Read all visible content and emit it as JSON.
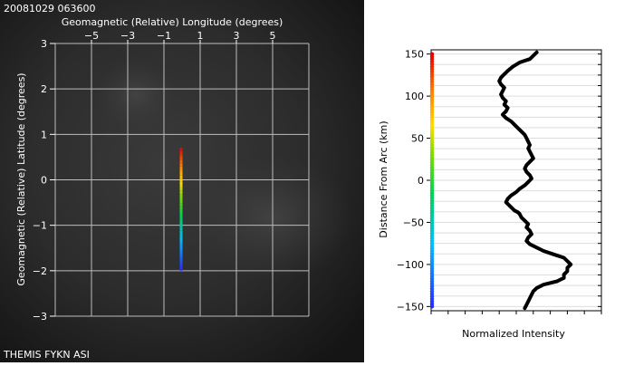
{
  "timestamp": "20081029 063600",
  "footer_label": "THEMIS FYKN ASI",
  "chart_data": [
    {
      "type": "scatter",
      "title": "",
      "xlabel": "Geomagnetic (Relative) Longitude (degrees)",
      "ylabel": "Geomagnetic (Relative) Latitude (degrees)",
      "xlim": [
        -7,
        7
      ],
      "ylim": [
        -3,
        3
      ],
      "x_tick_labels": [
        "−5",
        "−3",
        "−1",
        "1",
        "3",
        "5"
      ],
      "x_ticks": [
        -5,
        -3,
        -1,
        1,
        3,
        5
      ],
      "y_tick_labels": [
        "3",
        "2",
        "1",
        "0",
        "−1",
        "−2",
        "−3"
      ],
      "y_ticks": [
        3,
        2,
        1,
        0,
        -1,
        -2,
        -3
      ],
      "grid": true,
      "series": [
        {
          "x": -0.05,
          "y_start": -2.0,
          "y_end": 0.7,
          "color_scale": "distance from arc, blue (low) to red (high)"
        }
      ]
    },
    {
      "type": "line",
      "xlabel": "Normalized Intensity",
      "ylabel": "Distance From Arc (km)",
      "ylim": [
        -155,
        155
      ],
      "y_ticks": [
        150,
        100,
        50,
        0,
        -50,
        -100,
        -150
      ],
      "y_tick_labels": [
        "150",
        "100",
        "50",
        "0",
        "−50",
        "−100",
        "−150"
      ],
      "grid": true,
      "series": [
        {
          "x": [
            0.62,
            0.6,
            0.58,
            0.52,
            0.48,
            0.45,
            0.43,
            0.41,
            0.4,
            0.41,
            0.43,
            0.42,
            0.41,
            0.42,
            0.44,
            0.43,
            0.45,
            0.44,
            0.42,
            0.44,
            0.47,
            0.49,
            0.51,
            0.53,
            0.55,
            0.56,
            0.57,
            0.58,
            0.57,
            0.58,
            0.59,
            0.6,
            0.58,
            0.56,
            0.55,
            0.56,
            0.58,
            0.59,
            0.57,
            0.55,
            0.52,
            0.5,
            0.47,
            0.45,
            0.44,
            0.46,
            0.48,
            0.49,
            0.51,
            0.52,
            0.53,
            0.55,
            0.57,
            0.56,
            0.58,
            0.59,
            0.57,
            0.56,
            0.58,
            0.62,
            0.66,
            0.72,
            0.78,
            0.8,
            0.82,
            0.8,
            0.8,
            0.78,
            0.78,
            0.76,
            0.74,
            0.7,
            0.66,
            0.62,
            0.6,
            0.59,
            0.58,
            0.57,
            0.56,
            0.55
          ],
          "y": [
            152,
            148,
            144,
            140,
            135,
            130,
            126,
            122,
            118,
            114,
            110,
            106,
            102,
            98,
            94,
            90,
            86,
            82,
            78,
            74,
            70,
            66,
            62,
            58,
            54,
            50,
            46,
            42,
            38,
            34,
            30,
            26,
            22,
            18,
            14,
            10,
            6,
            2,
            -2,
            -6,
            -10,
            -14,
            -18,
            -22,
            -26,
            -30,
            -34,
            -36,
            -38,
            -40,
            -44,
            -48,
            -52,
            -56,
            -60,
            -64,
            -68,
            -72,
            -76,
            -80,
            -84,
            -88,
            -92,
            -96,
            -100,
            -104,
            -108,
            -112,
            -116,
            -118,
            -120,
            -122,
            -124,
            -128,
            -132,
            -136,
            -140,
            -144,
            -148,
            -152
          ]
        }
      ]
    }
  ]
}
